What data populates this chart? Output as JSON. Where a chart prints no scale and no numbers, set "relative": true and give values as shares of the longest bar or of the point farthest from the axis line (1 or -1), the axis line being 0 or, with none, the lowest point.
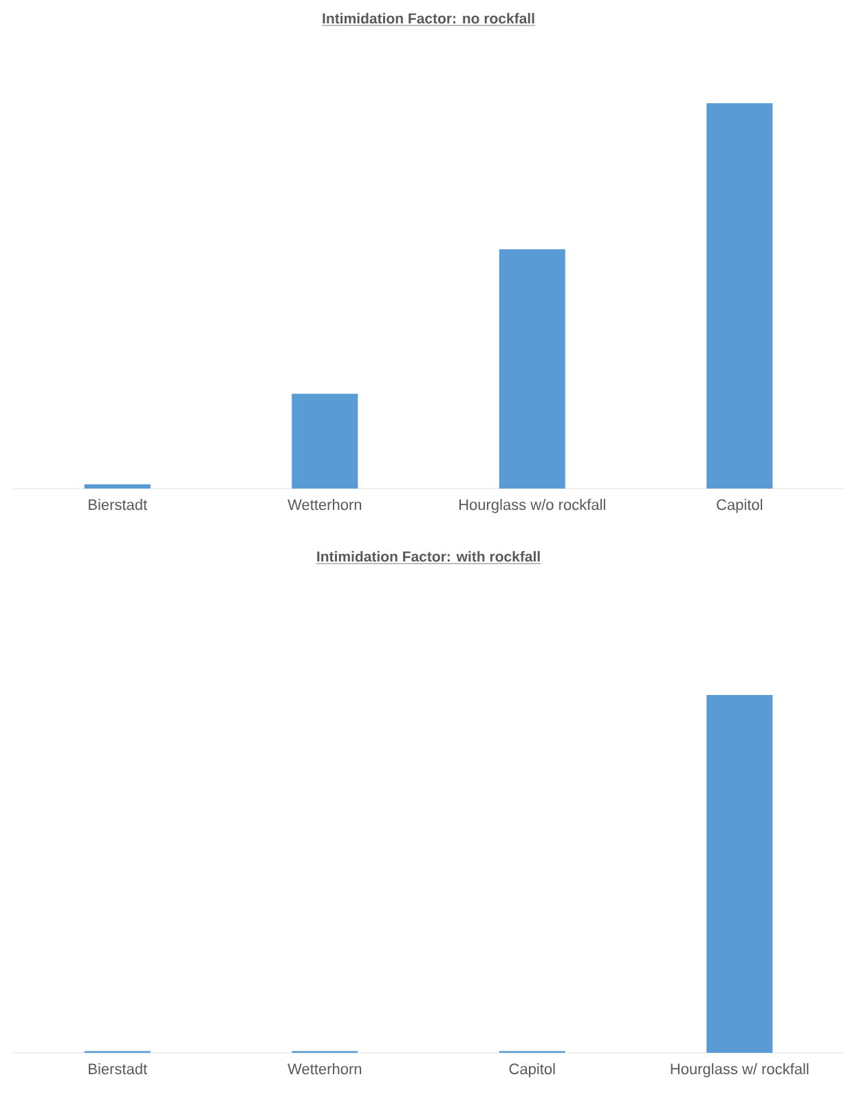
{
  "chart_data": [
    {
      "type": "bar",
      "title": "Intimidation Factor: no rockfall",
      "categories": [
        "Bierstadt",
        "Wetterhorn",
        "Hourglass w/o rockfall",
        "Capitol"
      ],
      "values": [
        0.011,
        0.246,
        0.621,
        1
      ],
      "color": "#5b9bd5",
      "relative": true
    },
    {
      "type": "bar",
      "title": "Intimidation Factor: with rockfall",
      "categories": [
        "Bierstadt",
        "Wetterhorn",
        "Capitol",
        "Hourglass w/ rockfall"
      ],
      "values": [
        0.005,
        0.005,
        0.005,
        1
      ],
      "color": "#5b9bd5",
      "relative": true
    }
  ]
}
